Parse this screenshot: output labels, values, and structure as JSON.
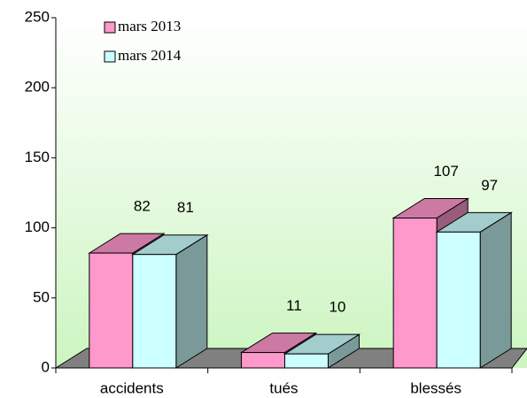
{
  "chart_data": {
    "type": "bar3d",
    "categories": [
      "accidents",
      "tués",
      "blessés"
    ],
    "series": [
      {
        "name": "mars 2013",
        "color": "#ff99cc",
        "values": [
          82,
          11,
          107
        ]
      },
      {
        "name": "mars 2014",
        "color": "#ccffff",
        "values": [
          81,
          10,
          97
        ]
      }
    ],
    "ylim": [
      0,
      250
    ],
    "yticks": [
      0,
      50,
      100,
      150,
      200,
      250
    ],
    "legend": "top-left"
  }
}
